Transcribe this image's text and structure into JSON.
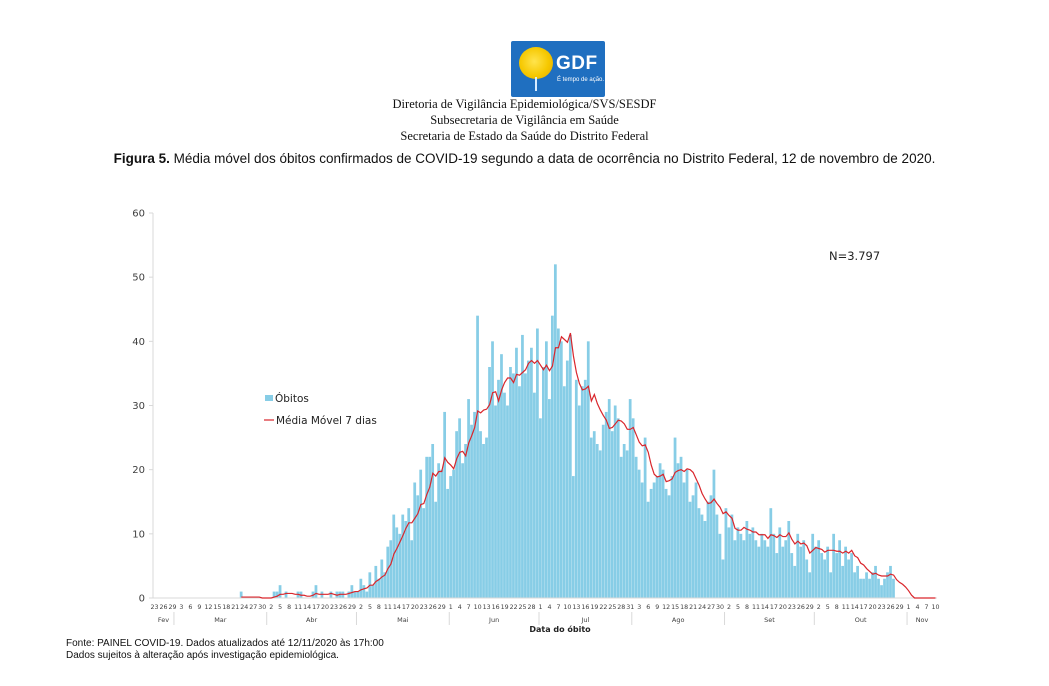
{
  "header": {
    "logo_text": "GDF",
    "logo_slogan": "É tempo de ação.",
    "lines": [
      "Diretoria de Vigilância Epidemiológica/SVS/SESDF",
      "Subsecretaria de Vigilância em Saúde",
      "Secretaria de Estado da Saúde do Distrito Federal"
    ]
  },
  "figure": {
    "label": "Figura 5.",
    "title": " Média móvel dos óbitos confirmados de COVID-19 segundo a data de ocorrência no Distrito Federal, 12 de novembro de 2020."
  },
  "footer": {
    "source": "Fonte: PAINEL COVID-19. Dados atualizados até 12/11/2020 às 17h:00",
    "note": "Dados sujeitos à alteração após investigação epidemiológica."
  },
  "colors": {
    "bars": "#87cde6",
    "moving_average": "#d9262c",
    "axis": "#d9d9d9",
    "text": "#404040"
  },
  "chart_data": {
    "type": "bar",
    "title": "Média móvel dos óbitos confirmados de COVID-19 segundo a data de ocorrência no Distrito Federal, 12 de novembro de 2020.",
    "xlabel": "Data do óbito",
    "ylabel": "",
    "ylim": [
      0,
      60
    ],
    "yticks": [
      0,
      10,
      20,
      30,
      40,
      50,
      60
    ],
    "annotation": "N=3.797",
    "legend": {
      "position": "left-middle",
      "entries": [
        "Óbitos",
        "Média Móvel  7 dias"
      ]
    },
    "x_start_date": "2020-02-23",
    "x_end_date": "2020-11-10",
    "x_tick_labels": [
      "23",
      "26",
      "29",
      "3",
      "6",
      "9",
      "12",
      "15",
      "18",
      "21",
      "24",
      "27",
      "30",
      "2",
      "5",
      "8",
      "11",
      "14",
      "17",
      "20",
      "23",
      "26",
      "29",
      "2",
      "5",
      "8",
      "11",
      "14",
      "17",
      "20",
      "23",
      "26",
      "29",
      "1",
      "4",
      "7",
      "10",
      "13",
      "16",
      "19",
      "22",
      "25",
      "28",
      "1",
      "4",
      "7",
      "10",
      "13",
      "16",
      "19",
      "22",
      "25",
      "28",
      "31",
      "3",
      "6",
      "9",
      "12",
      "15",
      "18",
      "21",
      "24",
      "27",
      "30",
      "2",
      "5",
      "8",
      "11",
      "14",
      "17",
      "20",
      "23",
      "26",
      "29",
      "2",
      "5",
      "8",
      "11",
      "14",
      "17",
      "20",
      "23",
      "26",
      "29",
      "1",
      "4",
      "7",
      "10"
    ],
    "month_labels": [
      "Fev",
      "Mar",
      "Abr",
      "Mai",
      "Jun",
      "Jul",
      "Ago",
      "Set",
      "Out",
      "Nov"
    ],
    "series": [
      {
        "name": "Óbitos",
        "type": "bar",
        "values": [
          0,
          0,
          0,
          0,
          0,
          0,
          0,
          0,
          0,
          0,
          0,
          0,
          0,
          0,
          0,
          0,
          0,
          0,
          0,
          0,
          0,
          0,
          0,
          0,
          0,
          0,
          0,
          0,
          0,
          1,
          0,
          0,
          0,
          0,
          0,
          0,
          0,
          0,
          0,
          0,
          1,
          1,
          2,
          0,
          1,
          0,
          0,
          0,
          1,
          1,
          0,
          0,
          0,
          1,
          2,
          0,
          1,
          0,
          0,
          1,
          0,
          1,
          1,
          1,
          0,
          1,
          2,
          1,
          1,
          3,
          2,
          1,
          4,
          2,
          5,
          3,
          6,
          4,
          8,
          9,
          13,
          11,
          10,
          13,
          12,
          14,
          9,
          18,
          16,
          20,
          14,
          22,
          22,
          24,
          15,
          21,
          20,
          29,
          17,
          19,
          20,
          26,
          28,
          21,
          24,
          31,
          27,
          29,
          44,
          26,
          24,
          25,
          36,
          40,
          30,
          34,
          38,
          32,
          30,
          36,
          35,
          39,
          33,
          41,
          35,
          37,
          39,
          32,
          42,
          28,
          36,
          40,
          31,
          44,
          52,
          42,
          40,
          33,
          37,
          41,
          19,
          34,
          30,
          33,
          34,
          40,
          25,
          26,
          24,
          23,
          27,
          29,
          31,
          26,
          30,
          28,
          22,
          24,
          23,
          31,
          28,
          22,
          20,
          18,
          25,
          15,
          17,
          18,
          19,
          21,
          20,
          17,
          16,
          19,
          25,
          21,
          22,
          18,
          20,
          15,
          16,
          18,
          14,
          13,
          12,
          15,
          16,
          20,
          13,
          10,
          6,
          14,
          11,
          13,
          9,
          11,
          10,
          9,
          12,
          10,
          11,
          9,
          8,
          10,
          9,
          8,
          14,
          10,
          7,
          11,
          8,
          9,
          12,
          7,
          5,
          10,
          8,
          9,
          6,
          4,
          10,
          8,
          9,
          7,
          6,
          8,
          4,
          10,
          7,
          9,
          5,
          8,
          6,
          7,
          4,
          5,
          3,
          3,
          4,
          3,
          4,
          5,
          3,
          2,
          3,
          4,
          5,
          3
        ],
        "note": "Daily values approximate, read from bar heights."
      },
      {
        "name": "Média Móvel  7 dias",
        "type": "line",
        "values": "computed as trailing 7-day mean of Óbitos"
      }
    ]
  }
}
